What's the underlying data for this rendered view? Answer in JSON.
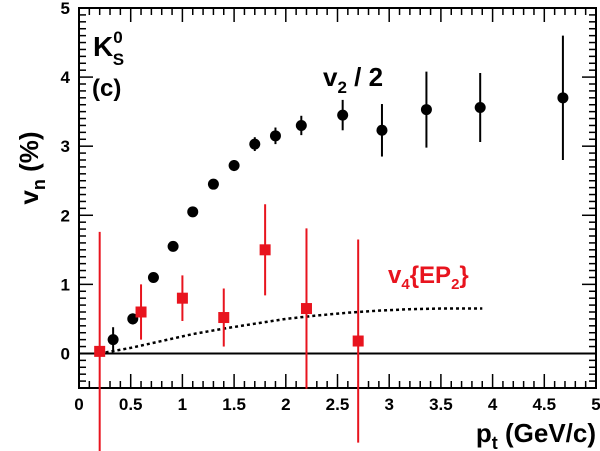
{
  "chart_data": {
    "type": "scatter",
    "xlabel": {
      "main": "p",
      "sub": "t",
      "rest": " (GeV/c)"
    },
    "ylabel": {
      "main": "v",
      "sub": "n",
      "rest": " (%)"
    },
    "xlim": [
      0,
      5
    ],
    "ylim": [
      -0.5,
      5
    ],
    "x_ticks": [
      "0",
      "0.5",
      "1",
      "1.5",
      "2",
      "2.5",
      "3",
      "3.5",
      "4",
      "4.5",
      "5"
    ],
    "y_ticks": [
      "0",
      "1",
      "2",
      "3",
      "4",
      "5"
    ],
    "particle_label": {
      "main": "K",
      "sup": "0",
      "sub": "S"
    },
    "panel_label": "(c)",
    "zero_line": true,
    "series": [
      {
        "name": {
          "main": "v",
          "sub": "2",
          "rest": " / 2"
        },
        "marker": "circle",
        "color": "#000000",
        "points": [
          {
            "x": 0.33,
            "y": 0.2,
            "err": 0.18
          },
          {
            "x": 0.52,
            "y": 0.5,
            "err": 0.08
          },
          {
            "x": 0.72,
            "y": 1.1,
            "err": 0.05
          },
          {
            "x": 0.91,
            "y": 1.55,
            "err": 0.04
          },
          {
            "x": 1.1,
            "y": 2.05,
            "err": 0.05
          },
          {
            "x": 1.3,
            "y": 2.45,
            "err": 0.05
          },
          {
            "x": 1.5,
            "y": 2.72,
            "err": 0.08
          },
          {
            "x": 1.7,
            "y": 3.03,
            "err": 0.1
          },
          {
            "x": 1.9,
            "y": 3.15,
            "err": 0.12
          },
          {
            "x": 2.15,
            "y": 3.3,
            "err": 0.14
          },
          {
            "x": 2.55,
            "y": 3.45,
            "err": 0.22
          },
          {
            "x": 2.93,
            "y": 3.23,
            "err": 0.38
          },
          {
            "x": 3.36,
            "y": 3.53,
            "err": 0.55
          },
          {
            "x": 3.88,
            "y": 3.56,
            "err": 0.5
          },
          {
            "x": 4.68,
            "y": 3.7,
            "err": 0.9
          }
        ]
      },
      {
        "name": {
          "main": "v",
          "sub": "4",
          "rest": "{EP",
          "sub2": "2",
          "rest2": "}"
        },
        "marker": "square",
        "color": "#e8141e",
        "points": [
          {
            "x": 0.2,
            "y": 0.03,
            "err": 1.73
          },
          {
            "x": 0.6,
            "y": 0.6,
            "err": 0.4
          },
          {
            "x": 1.0,
            "y": 0.8,
            "err": 0.33
          },
          {
            "x": 1.4,
            "y": 0.52,
            "err": 0.42
          },
          {
            "x": 1.8,
            "y": 1.5,
            "err": 0.66
          },
          {
            "x": 2.2,
            "y": 0.65,
            "err": 1.16
          },
          {
            "x": 2.7,
            "y": 0.18,
            "err": 1.47
          }
        ]
      }
    ],
    "curve": {
      "style": "dotted",
      "color": "#000000",
      "x": [
        0.2,
        0.5,
        0.8,
        1.1,
        1.4,
        1.7,
        2.0,
        2.3,
        2.6,
        2.9,
        3.2,
        3.5,
        3.9
      ],
      "y": [
        0.0,
        0.08,
        0.18,
        0.28,
        0.36,
        0.43,
        0.5,
        0.55,
        0.59,
        0.62,
        0.64,
        0.65,
        0.65
      ]
    }
  }
}
